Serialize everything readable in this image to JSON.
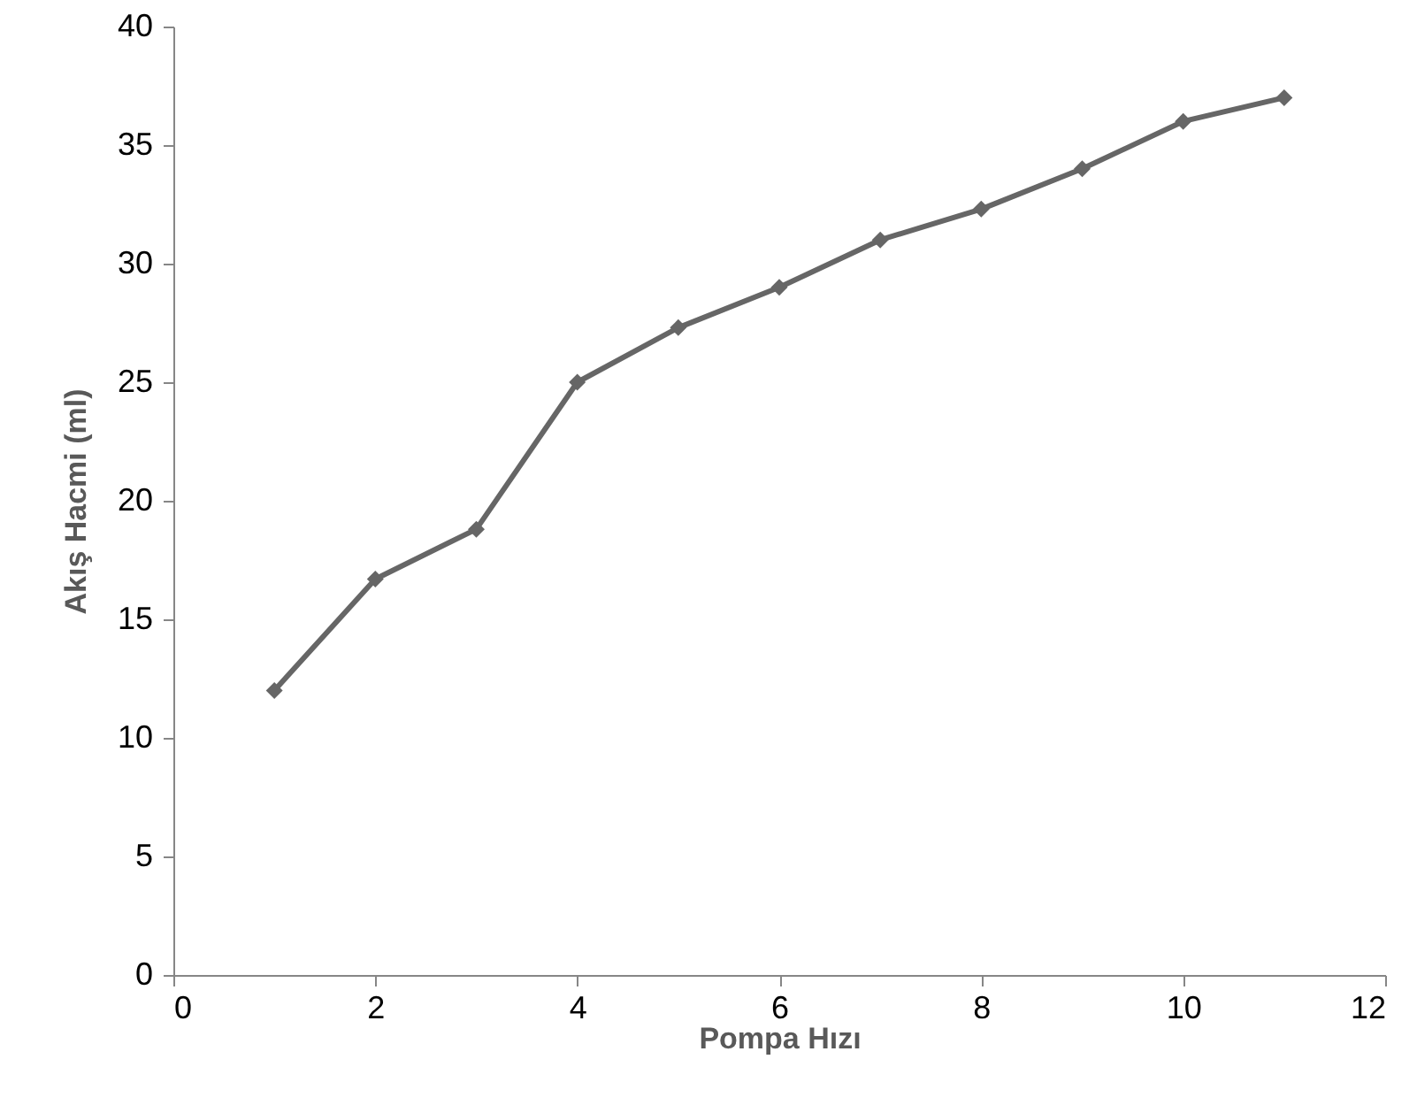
{
  "chart_data": {
    "type": "line",
    "xlabel": "Pompa Hızı",
    "ylabel": "Akış Hacmi (ml)",
    "x": [
      1,
      2,
      3,
      4,
      5,
      6,
      7,
      8,
      9,
      10,
      11
    ],
    "series": [
      {
        "color": "#666666",
        "values": [
          12,
          16.7,
          18.8,
          25,
          27.3,
          29,
          31,
          32.3,
          34,
          36,
          37
        ]
      }
    ],
    "xlim": [
      0,
      12
    ],
    "xticks": [
      0,
      2,
      4,
      6,
      8,
      10,
      12
    ],
    "ylim": [
      0,
      40
    ],
    "yticks": [
      0,
      5,
      10,
      15,
      20,
      25,
      30,
      35,
      40
    ],
    "grid": false,
    "marker": "diamond",
    "line_style": "solid"
  }
}
